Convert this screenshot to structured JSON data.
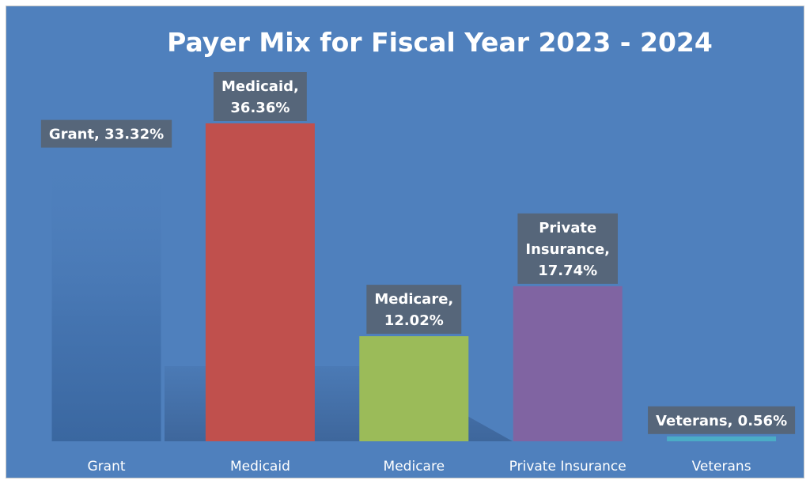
{
  "chart_data": {
    "type": "bar",
    "title": "Payer Mix for Fiscal Year 2023 - 2024",
    "xlabel": "",
    "ylabel": "",
    "categories": [
      "Grant",
      "Medicaid",
      "Medicare",
      "Private Insurance",
      "Veterans"
    ],
    "values": [
      33.32,
      36.36,
      12.02,
      17.74,
      0.56
    ],
    "data_labels": [
      [
        "Grant, 33.32%"
      ],
      [
        "Medicaid,",
        "36.36%"
      ],
      [
        "Medicare,",
        "12.02%"
      ],
      [
        "Private",
        "Insurance,",
        "17.74%"
      ],
      [
        "Veterans, 0.56%"
      ]
    ],
    "colors": [
      "#3d6ba6",
      "#c0504d",
      "#9bbb59",
      "#8064a2",
      "#4bacc6"
    ],
    "ylim": [
      0,
      40
    ],
    "grid": false,
    "legend": "none",
    "background": "#4f80bd"
  }
}
